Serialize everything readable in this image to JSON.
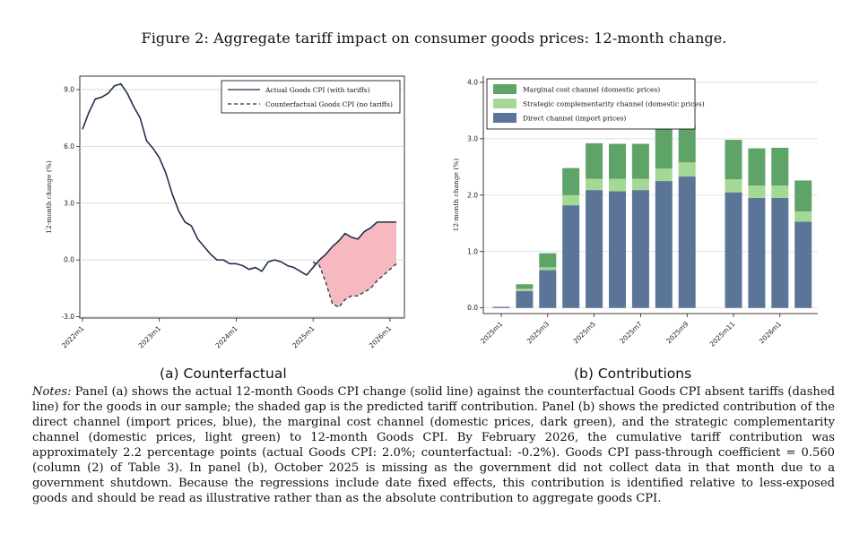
{
  "figure": {
    "title": "Figure 2: Aggregate tariff impact on consumer goods prices: 12-month change.",
    "notes_label": "Notes:",
    "notes_text": "Panel (a) shows the actual 12-month Goods CPI change (solid line) against the counterfactual Goods CPI absent tariffs (dashed line) for the goods in our sample; the shaded gap is the predicted tariff contribution. Panel (b) shows the predicted contribution of the direct channel (import prices, blue), the marginal cost channel (domestic prices, dark green), and the strategic complementarity channel (domestic prices, light green) to 12-month Goods CPI. By February 2026, the cumulative tariff contribution was approximately 2.2 percentage points (actual Goods CPI: 2.0%; counterfactual: -0.2%). Goods CPI pass-through coefficient = 0.560 (column (2) of Table 3). In panel (b), October 2025 is missing as the government did not collect data in that month due to a government shutdown. Because the regressions include date fixed effects, this contribution is identified relative to less-exposed goods and should be read as illustrative rather than as the absolute contribution to aggregate goods CPI."
  },
  "chart_data": [
    {
      "type": "line",
      "caption": "(a) Counterfactual",
      "ylabel": "12-month change (%)",
      "ylim": [
        -3.0,
        9.0
      ],
      "yticks": [
        "-3.0",
        "0.0",
        "3.0",
        "6.0",
        "9.0"
      ],
      "xticks": [
        "2022m1",
        "2023m1",
        "2024m1",
        "2025m1",
        "2026m1"
      ],
      "legend_position": "top-right",
      "grid": "horizontal",
      "colors": {
        "actual": "#1f2f4a",
        "counterfactual": "#1f2f4a",
        "gap_fill": "#f6b9bf"
      },
      "series": [
        {
          "name": "Actual Goods CPI (with tariffs)",
          "style": "solid",
          "x": [
            "2022-01",
            "2022-02",
            "2022-03",
            "2022-04",
            "2022-05",
            "2022-06",
            "2022-07",
            "2022-08",
            "2022-09",
            "2022-10",
            "2022-11",
            "2022-12",
            "2023-01",
            "2023-02",
            "2023-03",
            "2023-04",
            "2023-05",
            "2023-06",
            "2023-07",
            "2023-08",
            "2023-09",
            "2023-10",
            "2023-11",
            "2023-12",
            "2024-01",
            "2024-02",
            "2024-03",
            "2024-04",
            "2024-05",
            "2024-06",
            "2024-07",
            "2024-08",
            "2024-09",
            "2024-10",
            "2024-11",
            "2024-12",
            "2025-01",
            "2025-02",
            "2025-03",
            "2025-04",
            "2025-05",
            "2025-06",
            "2025-07",
            "2025-08",
            "2025-09",
            "2025-10",
            "2025-11",
            "2025-12",
            "2026-01",
            "2026-02"
          ],
          "values": [
            6.9,
            7.8,
            8.5,
            8.6,
            8.8,
            9.2,
            9.3,
            8.8,
            8.1,
            7.5,
            6.3,
            5.9,
            5.4,
            4.6,
            3.5,
            2.6,
            2.0,
            1.8,
            1.1,
            0.7,
            0.3,
            0.0,
            0.0,
            -0.2,
            -0.2,
            -0.3,
            -0.5,
            -0.4,
            -0.6,
            -0.1,
            0.0,
            -0.1,
            -0.3,
            -0.4,
            -0.6,
            -0.8,
            -0.4,
            0.0,
            0.3,
            0.7,
            1.0,
            1.4,
            1.2,
            1.1,
            1.5,
            1.7,
            2.0,
            2.0,
            2.0,
            2.0
          ]
        },
        {
          "name": "Counterfactual Goods CPI (no tariffs)",
          "style": "dashed",
          "x": [
            "2025-01",
            "2025-02",
            "2025-03",
            "2025-04",
            "2025-05",
            "2025-06",
            "2025-07",
            "2025-08",
            "2025-09",
            "2025-10",
            "2025-11",
            "2025-12",
            "2026-01",
            "2026-02"
          ],
          "values": [
            -0.1,
            -0.3,
            -1.2,
            -2.3,
            -2.5,
            -2.1,
            -1.9,
            -1.9,
            -1.7,
            -1.5,
            -1.1,
            -0.8,
            -0.5,
            -0.2
          ]
        }
      ]
    },
    {
      "type": "bar",
      "stacked": true,
      "caption": "(b) Contributions",
      "ylabel": "12-month change (%)",
      "ylim": [
        0,
        4.0
      ],
      "yticks": [
        "0.0",
        "1.0",
        "2.0",
        "3.0",
        "4.0"
      ],
      "xticks": [
        "2025m1",
        "2025m3",
        "2025m5",
        "2025m7",
        "2025m9",
        "2025m11",
        "2026m1"
      ],
      "legend_position": "top-left",
      "grid": "horizontal",
      "categories": [
        "2025m1",
        "2025m2",
        "2025m3",
        "2025m4",
        "2025m5",
        "2025m6",
        "2025m7",
        "2025m8",
        "2025m9",
        "2025m10",
        "2025m11",
        "2025m12",
        "2026m1",
        "2026m2"
      ],
      "series": [
        {
          "name": "Direct channel (import prices)",
          "color": "#5a7597",
          "values": [
            0.02,
            0.3,
            0.67,
            1.82,
            2.09,
            2.07,
            2.09,
            2.25,
            2.33,
            null,
            2.05,
            1.95,
            1.95,
            1.53
          ]
        },
        {
          "name": "Strategic complementarity channel (domestic prices)",
          "color": "#a6d895",
          "values": [
            0.0,
            0.04,
            0.05,
            0.18,
            0.2,
            0.22,
            0.2,
            0.22,
            0.25,
            null,
            0.23,
            0.22,
            0.22,
            0.18
          ]
        },
        {
          "name": "Marginal cost channel (domestic prices)",
          "color": "#5ea367",
          "values": [
            0.0,
            0.08,
            0.25,
            0.48,
            0.63,
            0.62,
            0.62,
            0.72,
            0.65,
            null,
            0.7,
            0.66,
            0.67,
            0.55
          ]
        }
      ]
    }
  ]
}
